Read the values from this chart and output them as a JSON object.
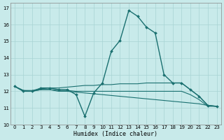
{
  "xlabel": "Humidex (Indice chaleur)",
  "background_color": "#c8eaea",
  "grid_color": "#a8d4d4",
  "line_color": "#1a7070",
  "xlim": [
    -0.5,
    23.5
  ],
  "ylim": [
    10,
    17.3
  ],
  "yticks": [
    10,
    11,
    12,
    13,
    14,
    15,
    16,
    17
  ],
  "xticks": [
    0,
    1,
    2,
    3,
    4,
    5,
    6,
    7,
    8,
    9,
    10,
    11,
    12,
    13,
    14,
    15,
    16,
    17,
    18,
    19,
    20,
    21,
    22,
    23
  ],
  "series": [
    {
      "x": [
        0,
        1,
        2,
        3,
        4,
        5,
        6,
        7,
        8,
        9,
        10,
        11,
        12,
        13,
        14,
        15,
        16,
        17,
        18,
        19,
        20,
        21,
        22,
        23
      ],
      "y": [
        12.3,
        12.0,
        12.0,
        12.2,
        12.2,
        12.1,
        12.1,
        11.8,
        10.5,
        11.9,
        12.5,
        14.4,
        15.05,
        16.85,
        16.5,
        15.85,
        15.5,
        13.0,
        12.5,
        12.5,
        12.1,
        11.7,
        11.15,
        11.1
      ],
      "lw": 1.0,
      "marker": "D",
      "ms": 2.0
    },
    {
      "x": [
        0,
        1,
        2,
        3,
        4,
        5,
        6,
        7,
        8,
        9,
        10,
        11,
        12,
        13,
        14,
        15,
        16,
        17,
        18,
        19,
        20,
        21,
        22,
        23
      ],
      "y": [
        12.3,
        12.05,
        12.05,
        12.15,
        12.2,
        12.2,
        12.25,
        12.3,
        12.35,
        12.35,
        12.4,
        12.4,
        12.45,
        12.45,
        12.45,
        12.5,
        12.5,
        12.5,
        12.5,
        12.5,
        12.1,
        11.7,
        11.15,
        11.1
      ],
      "lw": 0.8,
      "marker": null
    },
    {
      "x": [
        0,
        1,
        2,
        3,
        4,
        5,
        6,
        7,
        8,
        9,
        10,
        11,
        12,
        13,
        14,
        15,
        16,
        17,
        18,
        19,
        20,
        21,
        22,
        23
      ],
      "y": [
        12.3,
        12.0,
        12.0,
        12.1,
        12.1,
        12.05,
        12.05,
        12.0,
        12.0,
        12.0,
        12.0,
        12.0,
        12.0,
        12.0,
        12.0,
        12.0,
        12.0,
        12.0,
        12.0,
        12.0,
        11.8,
        11.5,
        11.1,
        11.1
      ],
      "lw": 0.8,
      "marker": null
    },
    {
      "x": [
        0,
        1,
        2,
        3,
        4,
        5,
        6,
        7,
        8,
        9,
        10,
        11,
        12,
        13,
        14,
        15,
        16,
        17,
        18,
        19,
        20,
        21,
        22,
        23
      ],
      "y": [
        12.3,
        12.05,
        12.0,
        12.1,
        12.1,
        12.0,
        12.0,
        11.95,
        11.9,
        11.85,
        11.8,
        11.75,
        11.7,
        11.65,
        11.6,
        11.55,
        11.5,
        11.45,
        11.4,
        11.35,
        11.3,
        11.25,
        11.15,
        11.1
      ],
      "lw": 0.8,
      "marker": null
    }
  ]
}
